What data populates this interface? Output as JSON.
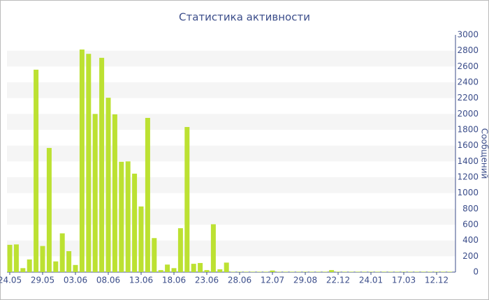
{
  "chart_data": {
    "type": "bar",
    "title": "Статистика активности",
    "y_label": "Сообщений",
    "categories": [
      "24.05",
      null,
      null,
      null,
      null,
      "29.05",
      null,
      null,
      null,
      null,
      "03.06",
      null,
      null,
      null,
      null,
      "08.06",
      null,
      null,
      null,
      null,
      "13.06",
      null,
      null,
      null,
      null,
      "18.06",
      null,
      null,
      null,
      null,
      "23.06",
      null,
      null,
      null,
      null,
      "28.06",
      null,
      null,
      null,
      null,
      "12.07",
      null,
      null,
      null,
      null,
      "29.08",
      null,
      null,
      null,
      null,
      "22.12",
      null,
      null,
      null,
      null,
      "24.01",
      null,
      null,
      null,
      null,
      "17.03",
      null,
      null,
      null,
      null,
      "12.12",
      null,
      null
    ],
    "values": [
      345,
      350,
      50,
      160,
      2560,
      330,
      1570,
      135,
      490,
      265,
      90,
      2815,
      2760,
      2000,
      2710,
      2205,
      1995,
      1395,
      1400,
      1245,
      830,
      1950,
      430,
      25,
      95,
      50,
      555,
      1835,
      105,
      115,
      25,
      605,
      35,
      120,
      5,
      5,
      5,
      5,
      5,
      5,
      20,
      5,
      5,
      5,
      5,
      5,
      5,
      5,
      5,
      25,
      5,
      5,
      5,
      5,
      5,
      5,
      5,
      5,
      5,
      5,
      5,
      5,
      5,
      5,
      5,
      5,
      5,
      5
    ],
    "color": "#bce132",
    "ylim": [
      0,
      3000
    ],
    "yticks": [
      0,
      200,
      400,
      600,
      800,
      1000,
      1200,
      1400,
      1600,
      1800,
      2000,
      2200,
      2400,
      2600,
      2800,
      3000
    ],
    "grid": true,
    "y_axis_side": "right"
  }
}
